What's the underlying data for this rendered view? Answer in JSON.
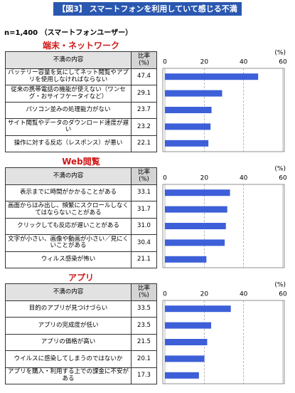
{
  "header": {
    "title": "【図3】 スマートフォンを利用していて感じる不満",
    "note": "n=1,400 （スマートフォンユーザー）"
  },
  "chart_data": [
    {
      "type": "bar",
      "title": "端末・ネットワーク",
      "column_headers": [
        "不満の内容",
        "比率\n(%)"
      ],
      "xlabel": "(%)",
      "categories": [
        "バッテリー容量を気にしてネット閲覧やアプリを使用しなければならない",
        "従来の携帯電話の機能が使えない（ワンセグ・おサイフケータイなど）",
        "パソコン並みの処理能力がない",
        "サイト閲覧やデータのダウンロード速度が遅い",
        "操作に対する反応（レスポンス）が悪い"
      ],
      "values": [
        47.4,
        29.1,
        23.7,
        23.2,
        22.1
      ],
      "value_labels": [
        "47.4",
        "29.1",
        "23.7",
        "23.2",
        "22.1"
      ],
      "color": "#3d5fd8",
      "xlim": [
        0,
        60
      ],
      "xticks": [
        0,
        20,
        40,
        60
      ]
    },
    {
      "type": "bar",
      "title": "Web閲覧",
      "column_headers": [
        "不満の内容",
        "比率\n(%)"
      ],
      "xlabel": "(%)",
      "categories": [
        "表示までに時間がかかることがある",
        "画面からはみ出し、頻繁にスクロールしなくてはならないことがある",
        "クリックしても反応が遅いことがある",
        "文字が小さい、画像や動画が小さい／見にくいことがある",
        "ウィルス感染が怖い"
      ],
      "values": [
        33.1,
        31.7,
        31.0,
        30.4,
        21.1
      ],
      "value_labels": [
        "33.1",
        "31.7",
        "31.0",
        "30.4",
        "21.1"
      ],
      "color": "#3d5fd8",
      "xlim": [
        0,
        60
      ],
      "xticks": [
        0,
        20,
        40,
        60
      ]
    },
    {
      "type": "bar",
      "title": "アプリ",
      "column_headers": [
        "不満の内容",
        "比率\n(%)"
      ],
      "xlabel": "(%)",
      "categories": [
        "目的のアプリが見つけづらい",
        "アプリの完成度が低い",
        "アプリの価格が高い",
        "ウイルスに感染してしまうのではないか",
        "アプリを購入・利用する上での課金に不安がある"
      ],
      "values": [
        33.5,
        23.5,
        21.5,
        20.1,
        17.3
      ],
      "value_labels": [
        "33.5",
        "23.5",
        "21.5",
        "20.1",
        "17.3"
      ],
      "color": "#3d5fd8",
      "xlim": [
        0,
        60
      ],
      "xticks": [
        0,
        20,
        40,
        60
      ]
    }
  ]
}
